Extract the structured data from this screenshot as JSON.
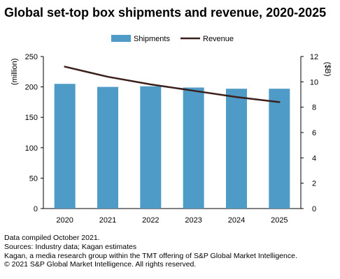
{
  "title": "Global set-top box shipments and revenue, 2020-2025",
  "footer": {
    "line1": "Data compiled October 2021.",
    "line2": "Sources: Industry data; Kagan estimates",
    "line3": "Kagan, a media research group within the TMT offering of S&P Global Market Intelligence.",
    "line4": "© 2021 S&P Global Market Intelligence. All rights reserved."
  },
  "chart_data": {
    "type": "bar",
    "title": "Global set-top box shipments and revenue, 2020-2025",
    "categories": [
      "2020",
      "2021",
      "2022",
      "2023",
      "2024",
      "2025"
    ],
    "series": [
      {
        "name": "Shipments",
        "type": "bar",
        "axis": "left",
        "values": [
          205,
          200,
          201,
          199,
          197,
          197
        ],
        "color": "#4f9bc7"
      },
      {
        "name": "Revenue",
        "type": "line",
        "axis": "right",
        "values": [
          11.2,
          10.4,
          9.8,
          9.3,
          8.8,
          8.4
        ],
        "color": "#3b1f1a"
      }
    ],
    "ylabel": "(million)",
    "ylim": [
      0,
      250
    ],
    "yticks": [
      0,
      50,
      100,
      150,
      200,
      250
    ],
    "y2label": "($B)",
    "y2lim": [
      0,
      12
    ],
    "y2ticks": [
      0,
      2,
      4,
      6,
      8,
      10,
      12
    ],
    "grid": false,
    "legend_position": "top-center"
  }
}
